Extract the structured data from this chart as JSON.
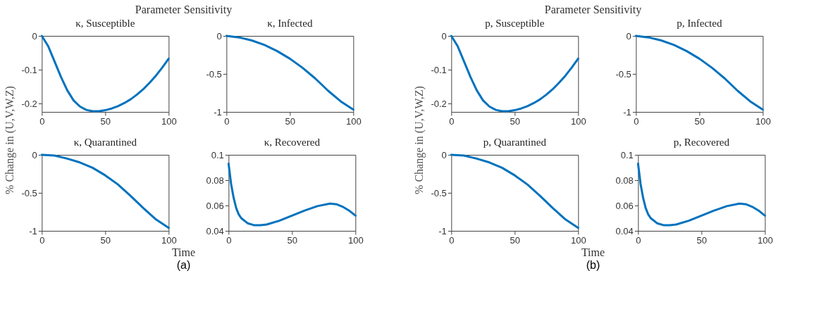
{
  "chart_data": [
    {
      "type": "line",
      "title": "κ, Susceptible",
      "ylabel": "% Change in (U,V,W,Z)",
      "xlabel": "Time",
      "annotations": [
        "Parameter Sensitivity",
        "(a)"
      ],
      "x": [
        0,
        5,
        10,
        15,
        20,
        25,
        30,
        35,
        40,
        45,
        50,
        55,
        60,
        65,
        70,
        75,
        80,
        85,
        90,
        95,
        100
      ],
      "series": [
        {
          "color": "#0072bd",
          "values": [
            0,
            -0.03,
            -0.075,
            -0.12,
            -0.16,
            -0.19,
            -0.208,
            -0.218,
            -0.222,
            -0.222,
            -0.219,
            -0.214,
            -0.207,
            -0.198,
            -0.187,
            -0.173,
            -0.157,
            -0.138,
            -0.117,
            -0.093,
            -0.067
          ]
        }
      ],
      "xlim": [
        0,
        100
      ],
      "xticks": [
        0,
        50,
        100
      ],
      "ylim": [
        -0.224,
        0
      ],
      "yticks": [
        -0.2,
        -0.1,
        0
      ],
      "grid": false
    },
    {
      "type": "line",
      "title": "κ, Infected",
      "x": [
        0,
        10,
        20,
        30,
        40,
        50,
        60,
        70,
        80,
        90,
        100
      ],
      "series": [
        {
          "color": "#0072bd",
          "values": [
            0,
            -0.02,
            -0.06,
            -0.12,
            -0.2,
            -0.3,
            -0.42,
            -0.56,
            -0.72,
            -0.86,
            -0.97
          ]
        }
      ],
      "xlim": [
        0,
        100
      ],
      "xticks": [
        0,
        50,
        100
      ],
      "ylim": [
        -1,
        0
      ],
      "yticks": [
        -1,
        -0.5,
        0
      ],
      "grid": false
    },
    {
      "type": "line",
      "title": "p, Susceptible",
      "ylabel": "% Change in (U,V,W,Z)",
      "xlabel": "Time",
      "annotations": [
        "Parameter Sensitivity",
        "(b)"
      ],
      "x": [
        0,
        5,
        10,
        15,
        20,
        25,
        30,
        35,
        40,
        45,
        50,
        55,
        60,
        65,
        70,
        75,
        80,
        85,
        90,
        95,
        100
      ],
      "series": [
        {
          "color": "#0072bd",
          "values": [
            0,
            -0.03,
            -0.075,
            -0.12,
            -0.16,
            -0.19,
            -0.208,
            -0.218,
            -0.222,
            -0.222,
            -0.219,
            -0.214,
            -0.207,
            -0.198,
            -0.187,
            -0.173,
            -0.157,
            -0.138,
            -0.117,
            -0.093,
            -0.067
          ]
        }
      ],
      "xlim": [
        0,
        100
      ],
      "xticks": [
        0,
        50,
        100
      ],
      "ylim": [
        -0.224,
        0
      ],
      "yticks": [
        -0.2,
        -0.1,
        0
      ],
      "grid": false
    },
    {
      "type": "line",
      "title": "p, Infected",
      "x": [
        0,
        10,
        20,
        30,
        40,
        50,
        60,
        70,
        80,
        90,
        100
      ],
      "series": [
        {
          "color": "#0072bd",
          "values": [
            0,
            -0.02,
            -0.06,
            -0.12,
            -0.2,
            -0.3,
            -0.42,
            -0.56,
            -0.72,
            -0.86,
            -0.97
          ]
        }
      ],
      "xlim": [
        0,
        100
      ],
      "xticks": [
        0,
        50,
        100
      ],
      "ylim": [
        -1,
        0
      ],
      "yticks": [
        -1,
        -0.5,
        0
      ],
      "grid": false
    },
    {
      "type": "line",
      "title": "κ, Quarantined",
      "x": [
        0,
        10,
        20,
        30,
        40,
        50,
        60,
        70,
        80,
        90,
        100
      ],
      "series": [
        {
          "color": "#0072bd",
          "values": [
            0,
            -0.01,
            -0.05,
            -0.1,
            -0.17,
            -0.27,
            -0.39,
            -0.54,
            -0.7,
            -0.85,
            -0.96
          ]
        }
      ],
      "xlim": [
        0,
        100
      ],
      "xticks": [
        0,
        50,
        100
      ],
      "ylim": [
        -1,
        0
      ],
      "yticks": [
        -1,
        -0.5,
        0
      ],
      "grid": false
    },
    {
      "type": "line",
      "title": "κ, Recovered",
      "x": [
        0,
        1,
        2,
        4,
        6,
        8,
        10,
        15,
        20,
        25,
        30,
        40,
        50,
        60,
        70,
        80,
        85,
        90,
        95,
        100
      ],
      "series": [
        {
          "color": "#0072bd",
          "values": [
            0.093,
            0.085,
            0.077,
            0.066,
            0.058,
            0.053,
            0.05,
            0.046,
            0.0445,
            0.0445,
            0.045,
            0.048,
            0.052,
            0.056,
            0.0595,
            0.0615,
            0.061,
            0.059,
            0.056,
            0.052
          ]
        }
      ],
      "xlim": [
        0,
        100
      ],
      "xticks": [
        0,
        50,
        100
      ],
      "ylim": [
        0.04,
        0.1
      ],
      "yticks": [
        0.04,
        0.06,
        0.08,
        0.1
      ],
      "grid": false
    },
    {
      "type": "line",
      "title": "p, Quarantined",
      "x": [
        0,
        10,
        20,
        30,
        40,
        50,
        60,
        70,
        80,
        90,
        100
      ],
      "series": [
        {
          "color": "#0072bd",
          "values": [
            0,
            -0.01,
            -0.05,
            -0.1,
            -0.17,
            -0.27,
            -0.39,
            -0.54,
            -0.7,
            -0.85,
            -0.96
          ]
        }
      ],
      "xlim": [
        0,
        100
      ],
      "xticks": [
        0,
        50,
        100
      ],
      "ylim": [
        -1,
        0
      ],
      "yticks": [
        -1,
        -0.5,
        0
      ],
      "grid": false
    },
    {
      "type": "line",
      "title": "p, Recovered",
      "x": [
        0,
        1,
        2,
        4,
        6,
        8,
        10,
        15,
        20,
        25,
        30,
        40,
        50,
        60,
        70,
        80,
        85,
        90,
        95,
        100
      ],
      "series": [
        {
          "color": "#0072bd",
          "values": [
            0.093,
            0.085,
            0.077,
            0.066,
            0.058,
            0.053,
            0.05,
            0.046,
            0.0445,
            0.0445,
            0.045,
            0.048,
            0.052,
            0.056,
            0.0595,
            0.0615,
            0.061,
            0.059,
            0.056,
            0.052
          ]
        }
      ],
      "xlim": [
        0,
        100
      ],
      "xticks": [
        0,
        50,
        100
      ],
      "ylim": [
        0.04,
        0.1
      ],
      "yticks": [
        0.04,
        0.06,
        0.08,
        0.1
      ],
      "grid": false
    }
  ]
}
